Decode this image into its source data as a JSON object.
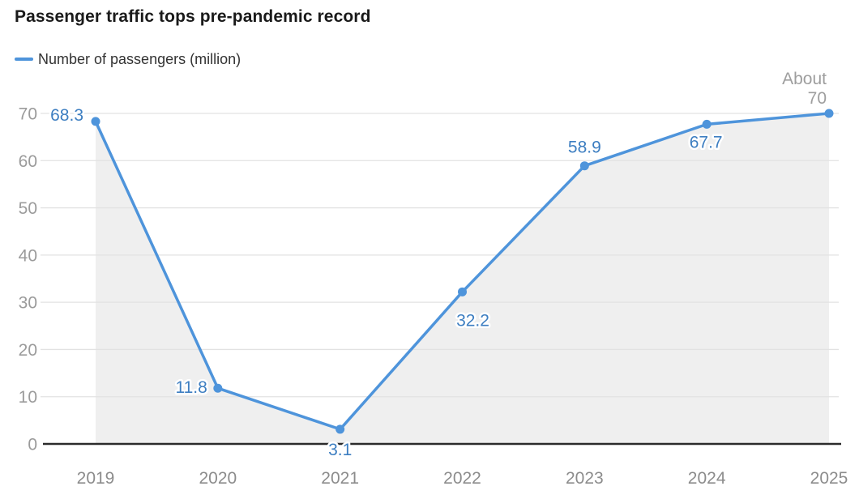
{
  "header": {
    "title": "Passenger traffic tops pre-pandemic record",
    "legend_label": "Number of passengers (million)"
  },
  "chart_data": {
    "type": "line",
    "title": "Passenger traffic tops pre-pandemic record",
    "legend": [
      {
        "name": "Number of passengers (million)",
        "color": "#4e94db"
      }
    ],
    "legend_position": "top-left",
    "categories": [
      "2019",
      "2020",
      "2021",
      "2022",
      "2023",
      "2024",
      "2025"
    ],
    "series": [
      {
        "name": "Number of passengers (million)",
        "values": [
          68.3,
          11.8,
          3.1,
          32.2,
          58.9,
          67.7,
          70
        ]
      }
    ],
    "point_labels": [
      "68.3",
      "11.8",
      "3.1",
      "32.2",
      "58.9",
      "67.7",
      ""
    ],
    "annotation": {
      "applies_to": "2025",
      "text": "About 70",
      "lines": [
        "About",
        "70"
      ]
    },
    "ylabel": "",
    "xlabel": "",
    "ylim": [
      0,
      70
    ],
    "yticks": [
      0,
      10,
      20,
      30,
      40,
      50,
      60,
      70
    ],
    "grid": true,
    "area_fill": true,
    "colors": {
      "line": "#4e94db",
      "marker": "#4e94db",
      "area": "#efefef",
      "grid": "#e2e2e2",
      "axis": "#2b2b2b",
      "y_tick_label": "#9b9b9b",
      "x_tick_label": "#8c8c8c",
      "data_label": "#3d7ec1",
      "annotation": "#9e9e9e"
    }
  }
}
